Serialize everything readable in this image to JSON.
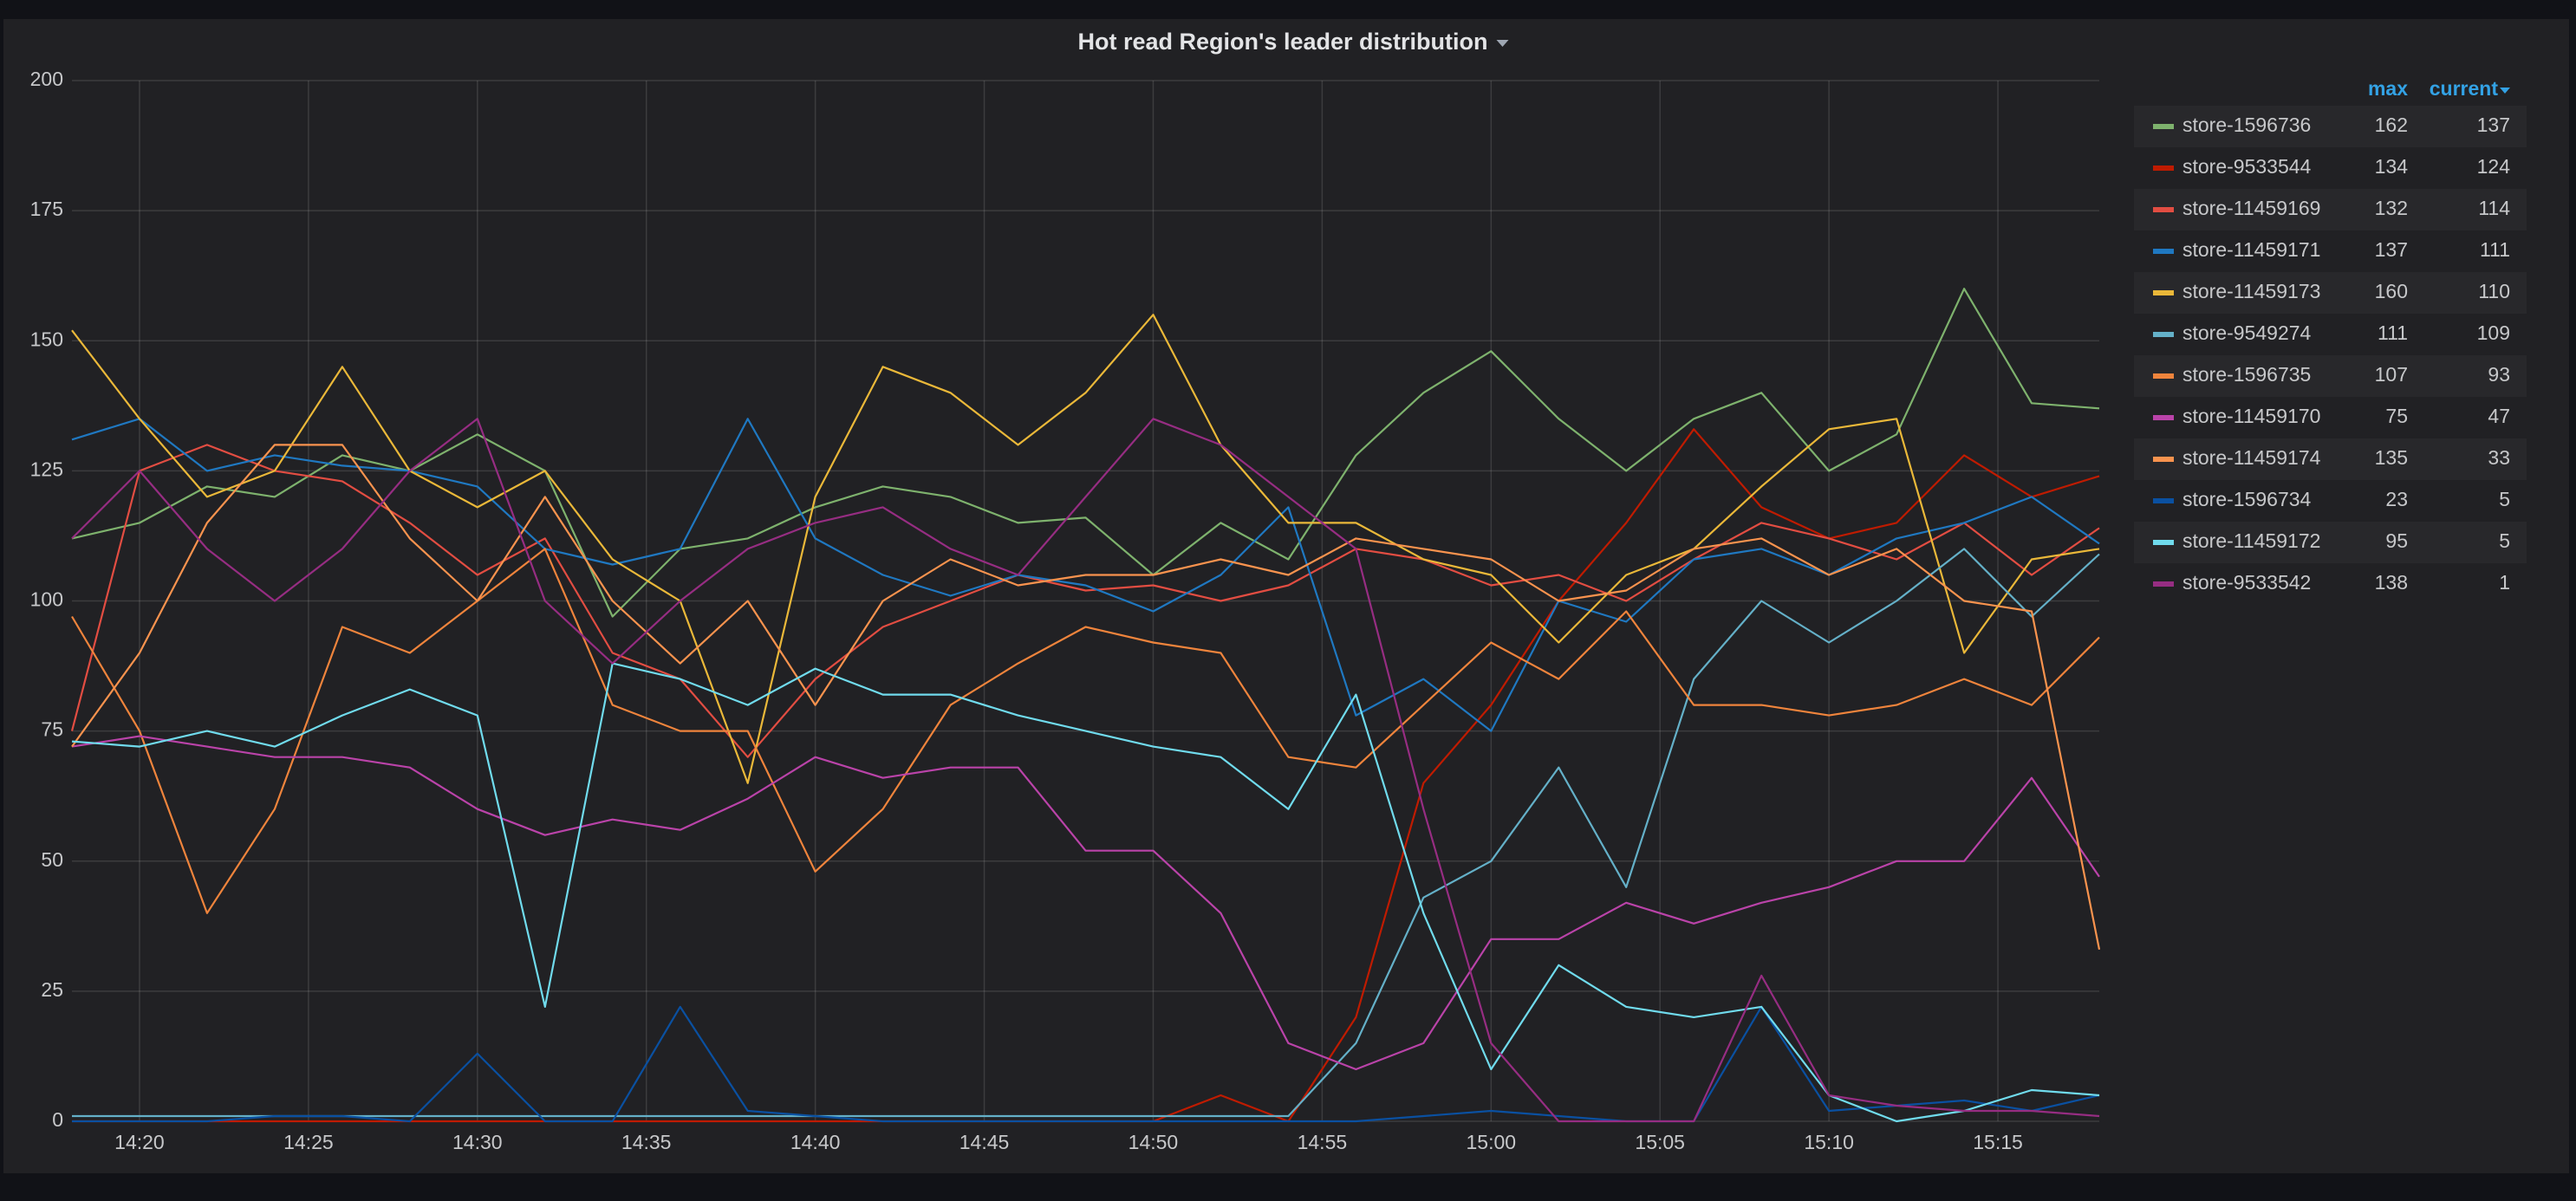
{
  "chart_data": {
    "type": "line",
    "title": "Hot read Region's leader distribution",
    "x": [
      "14:18",
      "14:20",
      "14:22",
      "14:24",
      "14:26",
      "14:28",
      "14:30",
      "14:32",
      "14:34",
      "14:36",
      "14:38",
      "14:40",
      "14:42",
      "14:44",
      "14:46",
      "14:48",
      "14:50",
      "14:52",
      "14:54",
      "14:56",
      "14:58",
      "15:00",
      "15:02",
      "15:04",
      "15:06",
      "15:08",
      "15:10",
      "15:12",
      "15:14",
      "15:16",
      "15:18"
    ],
    "xlim": [
      "14:18",
      "15:18"
    ],
    "xticks": [
      "14:20",
      "14:25",
      "14:30",
      "14:35",
      "14:40",
      "14:45",
      "14:50",
      "14:55",
      "15:00",
      "15:05",
      "15:10",
      "15:15"
    ],
    "ylim": [
      0,
      200
    ],
    "yticks": [
      0,
      25,
      50,
      75,
      100,
      125,
      150,
      175,
      200
    ],
    "grid": true,
    "legend_columns": [
      "max",
      "current"
    ],
    "series": [
      {
        "name": "store-1596736",
        "color": "#7eb26d",
        "max": 162,
        "current": 137,
        "values": [
          112,
          115,
          122,
          120,
          128,
          125,
          132,
          125,
          97,
          110,
          112,
          118,
          122,
          120,
          115,
          116,
          105,
          115,
          108,
          128,
          140,
          148,
          135,
          125,
          135,
          140,
          125,
          132,
          160,
          138,
          137
        ]
      },
      {
        "name": "store-9533544",
        "color": "#bf1b00",
        "max": 134,
        "current": 124,
        "values": [
          0,
          0,
          0,
          0,
          0,
          0,
          0,
          0,
          0,
          0,
          0,
          0,
          0,
          0,
          0,
          0,
          0,
          5,
          0,
          20,
          65,
          80,
          100,
          115,
          133,
          118,
          112,
          115,
          128,
          120,
          124
        ]
      },
      {
        "name": "store-11459169",
        "color": "#e24d42",
        "max": 132,
        "current": 114,
        "values": [
          75,
          125,
          130,
          125,
          123,
          115,
          105,
          112,
          90,
          85,
          70,
          85,
          95,
          100,
          105,
          102,
          103,
          100,
          103,
          110,
          108,
          103,
          105,
          100,
          108,
          115,
          112,
          108,
          115,
          105,
          114
        ]
      },
      {
        "name": "store-11459171",
        "color": "#1f78c1",
        "max": 137,
        "current": 111,
        "values": [
          131,
          135,
          125,
          128,
          126,
          125,
          122,
          110,
          107,
          110,
          135,
          112,
          105,
          101,
          105,
          103,
          98,
          105,
          118,
          78,
          85,
          75,
          100,
          96,
          108,
          110,
          105,
          112,
          115,
          120,
          111
        ]
      },
      {
        "name": "store-11459173",
        "color": "#eab839",
        "max": 160,
        "current": 110,
        "values": [
          152,
          135,
          120,
          125,
          145,
          125,
          118,
          125,
          108,
          100,
          65,
          120,
          145,
          140,
          130,
          140,
          155,
          130,
          115,
          115,
          108,
          105,
          92,
          105,
          110,
          122,
          133,
          135,
          90,
          108,
          110
        ]
      },
      {
        "name": "store-9549274",
        "color": "#64b0c8",
        "max": 111,
        "current": 109,
        "values": [
          1,
          1,
          1,
          1,
          1,
          1,
          1,
          1,
          1,
          1,
          1,
          1,
          1,
          1,
          1,
          1,
          1,
          1,
          1,
          15,
          43,
          50,
          68,
          45,
          85,
          100,
          92,
          100,
          110,
          97,
          109
        ]
      },
      {
        "name": "store-1596735",
        "color": "#ef843c",
        "max": 107,
        "current": 93,
        "values": [
          97,
          75,
          40,
          60,
          95,
          90,
          100,
          110,
          80,
          75,
          75,
          48,
          60,
          80,
          88,
          95,
          92,
          90,
          70,
          68,
          80,
          92,
          85,
          98,
          80,
          80,
          78,
          80,
          85,
          80,
          93
        ]
      },
      {
        "name": "store-11459170",
        "color": "#ba43a9",
        "max": 75,
        "current": 47,
        "values": [
          72,
          74,
          72,
          70,
          70,
          68,
          60,
          55,
          58,
          56,
          62,
          70,
          66,
          68,
          68,
          52,
          52,
          40,
          15,
          10,
          15,
          35,
          35,
          42,
          38,
          42,
          45,
          50,
          50,
          66,
          47
        ]
      },
      {
        "name": "store-11459174",
        "color": "#f9934e",
        "max": 135,
        "current": 33,
        "values": [
          72,
          90,
          115,
          130,
          130,
          112,
          100,
          120,
          100,
          88,
          100,
          80,
          100,
          108,
          103,
          105,
          105,
          108,
          105,
          112,
          110,
          108,
          100,
          102,
          110,
          112,
          105,
          110,
          100,
          98,
          33
        ]
      },
      {
        "name": "store-1596734",
        "color": "#0a50a1",
        "max": 23,
        "current": 5,
        "values": [
          0,
          0,
          0,
          1,
          1,
          0,
          13,
          0,
          0,
          22,
          2,
          1,
          0,
          0,
          0,
          0,
          0,
          0,
          0,
          0,
          1,
          2,
          1,
          0,
          0,
          22,
          2,
          3,
          4,
          2,
          5
        ]
      },
      {
        "name": "store-11459172",
        "color": "#70dbed",
        "max": 95,
        "current": 5,
        "values": [
          73,
          72,
          75,
          72,
          78,
          83,
          78,
          22,
          88,
          85,
          80,
          87,
          82,
          82,
          78,
          75,
          72,
          70,
          60,
          82,
          40,
          10,
          30,
          22,
          20,
          22,
          5,
          0,
          2,
          6,
          5
        ]
      },
      {
        "name": "store-9533542",
        "color": "#962d82",
        "max": 138,
        "current": 1,
        "values": [
          112,
          125,
          110,
          100,
          110,
          125,
          135,
          100,
          88,
          100,
          110,
          115,
          118,
          110,
          105,
          120,
          135,
          130,
          120,
          110,
          60,
          15,
          0,
          0,
          0,
          28,
          5,
          3,
          2,
          2,
          1
        ]
      }
    ]
  }
}
